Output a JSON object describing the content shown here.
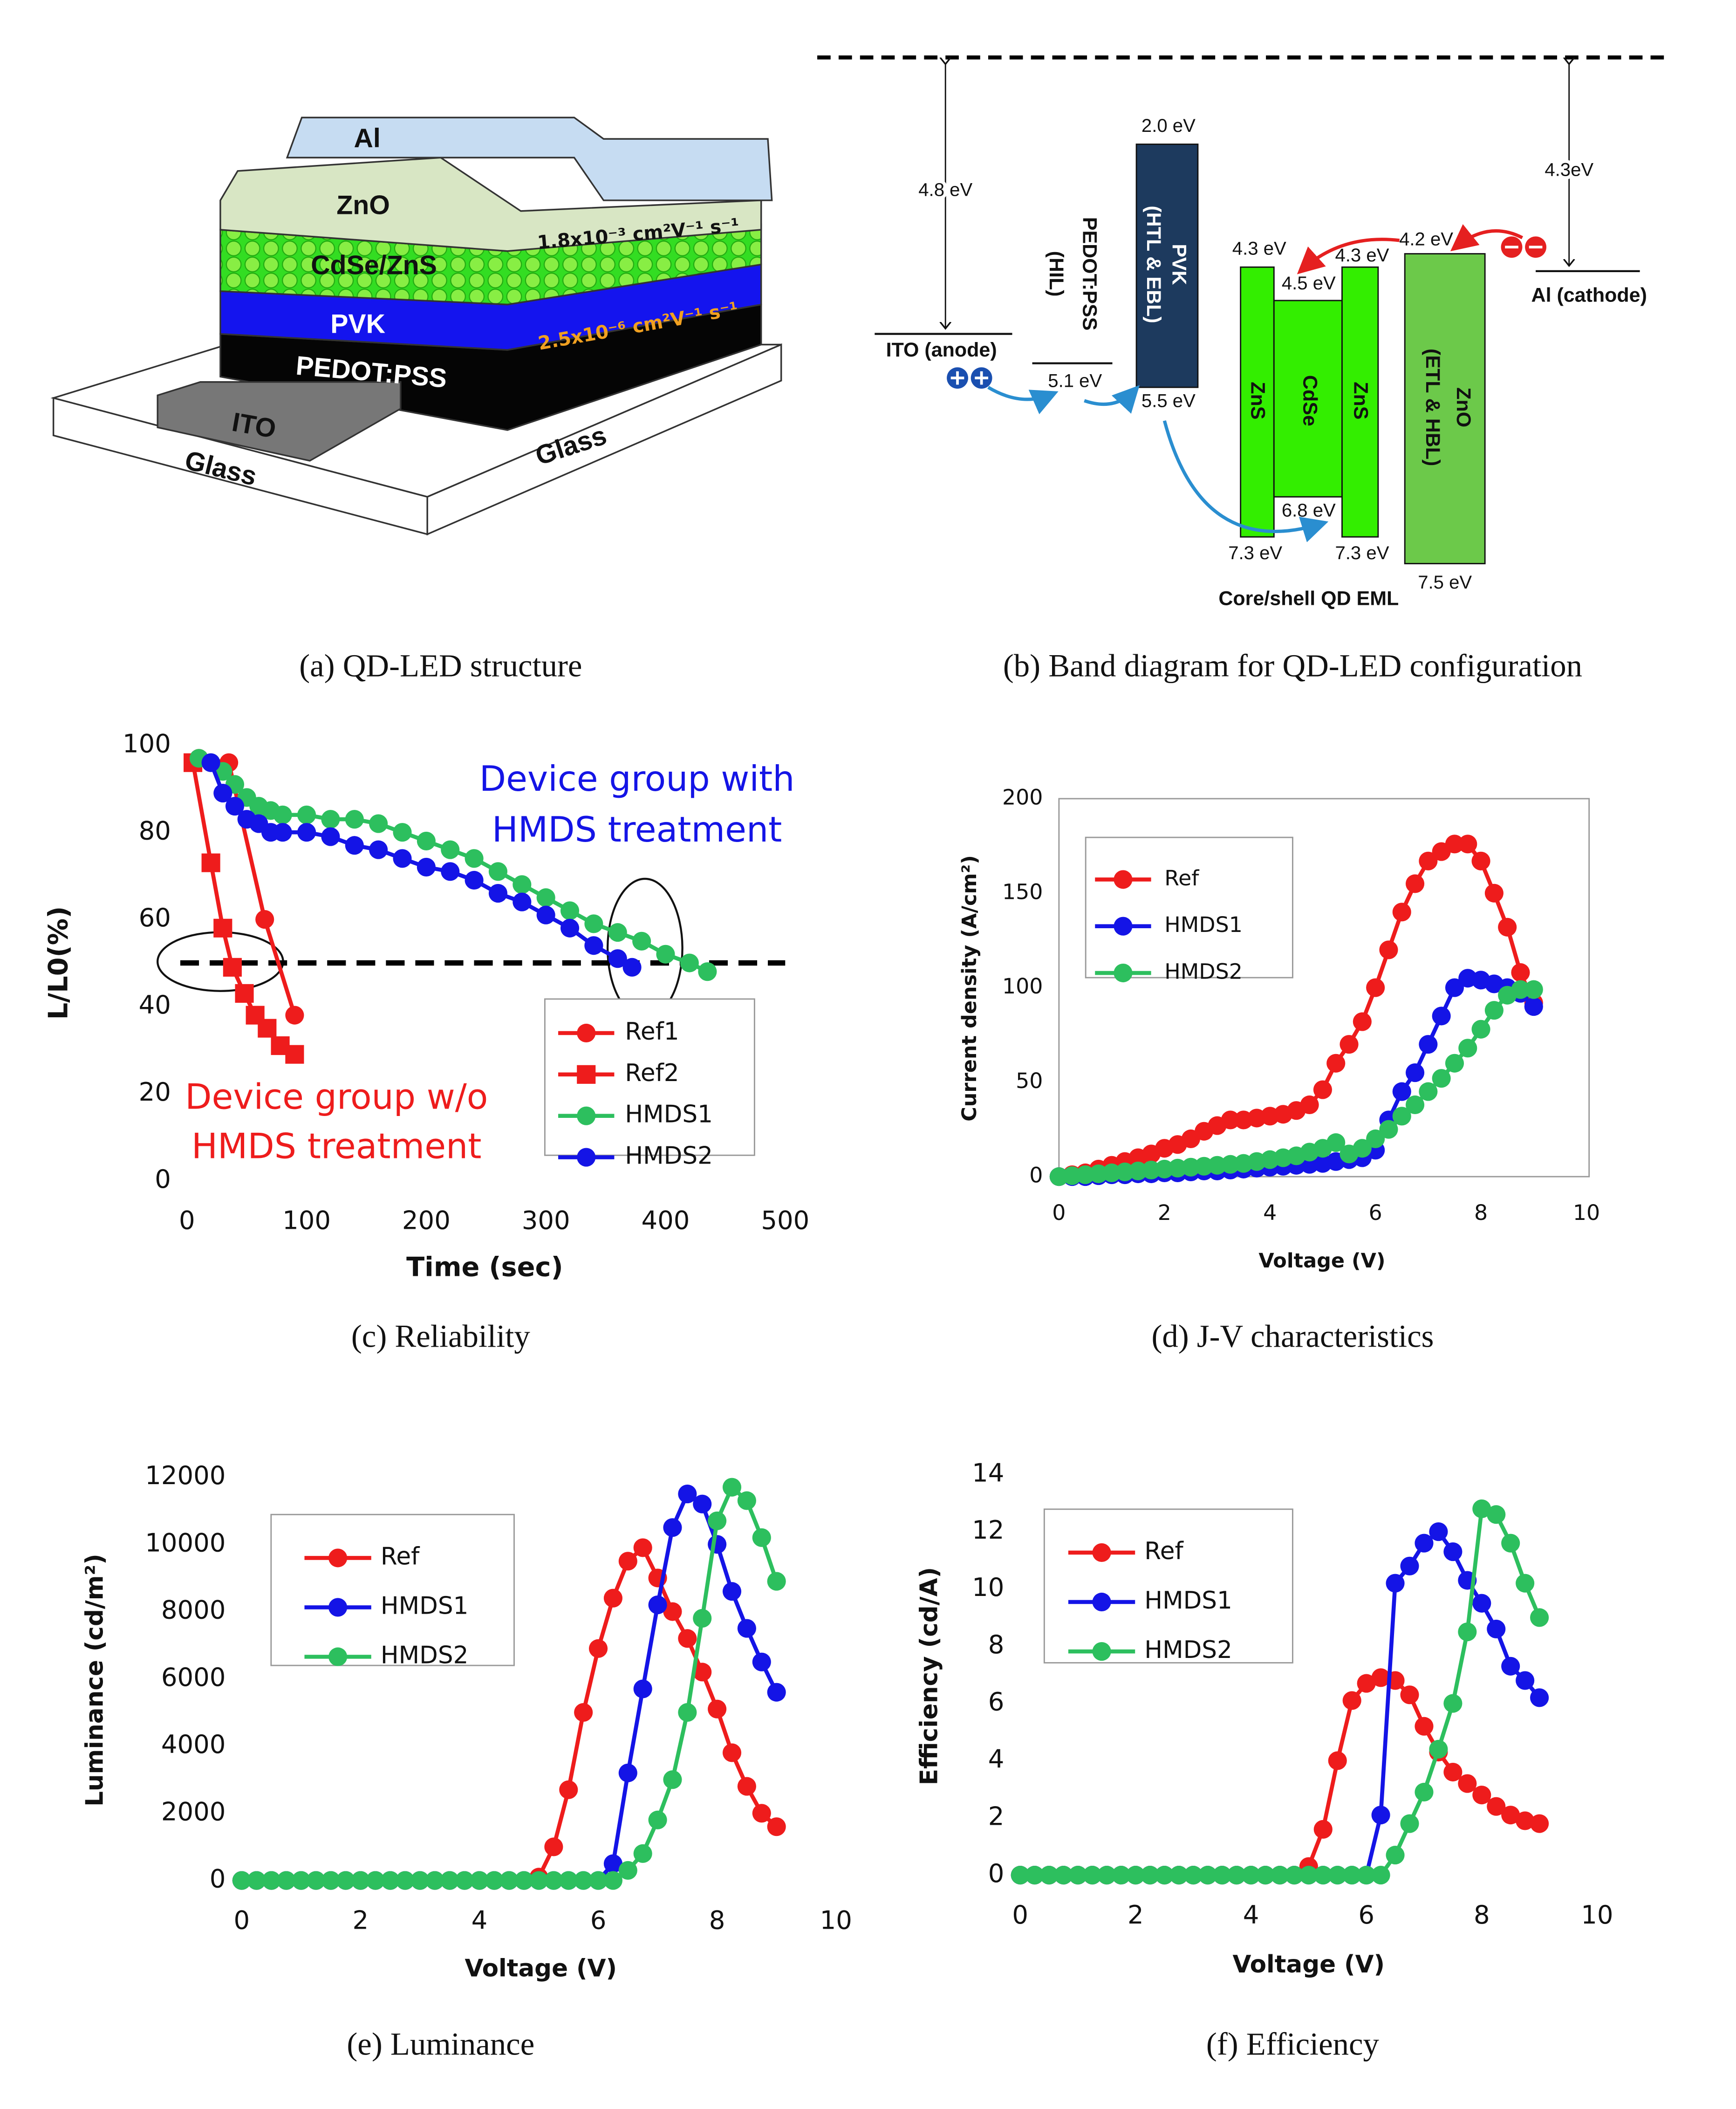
{
  "panel_a": {
    "layers": {
      "al": "Al",
      "zno": "ZnO",
      "qd": "CdSe/ZnS",
      "pvk": "PVK",
      "pedot": "PEDOT:PSS",
      "ito": "ITO",
      "glass_left": "Glass",
      "glass_right": "Glass"
    },
    "mobility_zno": "1.8x10⁻³ cm²V⁻¹ s⁻¹",
    "mobility_pvk": "2.5x10⁻⁶ cm²V⁻¹ s⁻¹",
    "caption": "(a) QD-LED structure"
  },
  "panel_b": {
    "vacuum_ito": "4.8 eV",
    "vacuum_al": "4.3eV",
    "ito": "ITO (anode)",
    "al": "Al (cathode)",
    "pedot_name": "PEDOT:PSS",
    "pedot_role": "(HIL)",
    "pedot_homo": "5.1 eV",
    "pvk_name": "PVK",
    "pvk_role": "(HTL & EBL)",
    "pvk_lumo": "2.0 eV",
    "pvk_homo": "5.5 eV",
    "zns_left": "ZnS",
    "cdse": "CdSe",
    "zns_right": "ZnS",
    "zns_left_lumo": "4.3 eV",
    "cdse_lumo": "4.5 eV",
    "zns_right_lumo": "4.3 eV",
    "zns_left_homo": "7.3 eV",
    "cdse_homo": "6.8 eV",
    "zns_right_homo": "7.3 eV",
    "zno_name": "ZnO",
    "zno_role": "(ETL & HBL)",
    "zno_lumo": "4.2 eV",
    "zno_homo": "7.5 eV",
    "eml": "Core/shell QD EML",
    "caption": "(b) Band diagram for QD-LED configuration"
  },
  "chart_data": [
    {
      "type": "line",
      "caption": "(c) Reliability",
      "x_label": "Time (sec)",
      "y_label": "L/L0(%)",
      "xlim": [
        0,
        500
      ],
      "xticks": [
        0,
        100,
        200,
        300,
        400,
        500
      ],
      "ylim": [
        0,
        100
      ],
      "yticks": [
        0,
        20,
        40,
        60,
        80,
        100
      ],
      "reference_line": 50,
      "legend": "lower right",
      "frame": false,
      "annotations": [
        {
          "lines": [
            "Device group with",
            "HMDS treatment"
          ],
          "color": "#1414e6"
        },
        {
          "lines": [
            "Device group w/o",
            "HMDS treatment"
          ],
          "color": "#ee1c1c"
        }
      ],
      "series": [
        {
          "name": "Ref1",
          "color": "#ee1c1c",
          "marker": "circle",
          "x": [
            10,
            35,
            65,
            90
          ],
          "values": [
            97,
            96,
            60,
            38
          ]
        },
        {
          "name": "Ref2",
          "color": "#ee1c1c",
          "marker": "square",
          "x": [
            5,
            20,
            30,
            38,
            48,
            57,
            67,
            78,
            90
          ],
          "values": [
            96,
            73,
            58,
            49,
            43,
            38,
            35,
            31,
            29
          ]
        },
        {
          "name": "HMDS1",
          "color": "#2dbf5e",
          "marker": "circle",
          "x": [
            10,
            20,
            30,
            40,
            50,
            60,
            70,
            80,
            100,
            120,
            140,
            160,
            180,
            200,
            220,
            240,
            260,
            280,
            300,
            320,
            340,
            360,
            380,
            400,
            420,
            435
          ],
          "values": [
            97,
            96,
            94,
            91,
            88,
            86,
            85,
            84,
            84,
            83,
            83,
            82,
            80,
            78,
            76,
            74,
            71,
            68,
            65,
            62,
            59,
            57,
            55,
            52,
            50,
            48
          ]
        },
        {
          "name": "HMDS2",
          "color": "#1414e6",
          "marker": "circle",
          "x": [
            20,
            30,
            40,
            50,
            60,
            70,
            80,
            100,
            120,
            140,
            160,
            180,
            200,
            220,
            240,
            260,
            280,
            300,
            320,
            340,
            360,
            372
          ],
          "values": [
            96,
            89,
            86,
            83,
            82,
            80,
            80,
            80,
            79,
            77,
            76,
            74,
            72,
            71,
            69,
            66,
            64,
            61,
            58,
            54,
            51,
            49
          ]
        }
      ]
    },
    {
      "type": "line",
      "caption": "(d) J-V characteristics",
      "x_label": "Voltage (V)",
      "y_label": "Current density (A/cm²)",
      "xlim": [
        0,
        10
      ],
      "xticks": [
        0,
        2,
        4,
        6,
        8,
        10
      ],
      "ylim": [
        0,
        200
      ],
      "yticks": [
        0,
        50,
        100,
        150,
        200
      ],
      "legend": "upper left",
      "frame": true,
      "x": [
        0,
        0.25,
        0.5,
        0.75,
        1,
        1.25,
        1.5,
        1.75,
        2,
        2.25,
        2.5,
        2.75,
        3,
        3.25,
        3.5,
        3.75,
        4,
        4.25,
        4.5,
        4.75,
        5,
        5.25,
        5.5,
        5.75,
        6,
        6.25,
        6.5,
        6.75,
        7,
        7.25,
        7.5,
        7.75,
        8,
        8.25,
        8.5,
        8.75,
        9
      ],
      "series": [
        {
          "name": "Ref",
          "color": "#ee1c1c",
          "marker": "circle",
          "values": [
            0,
            1,
            2,
            4,
            6,
            8,
            10,
            12,
            15,
            17,
            20,
            24,
            27,
            30,
            30,
            31,
            32,
            33,
            35,
            38,
            46,
            60,
            70,
            82,
            100,
            120,
            140,
            155,
            167,
            172,
            176,
            176,
            167,
            150,
            132,
            108,
            92
          ]
        },
        {
          "name": "HMDS1",
          "color": "#1414e6",
          "marker": "circle",
          "values": [
            0,
            0,
            0,
            0.5,
            1,
            1,
            1.5,
            1.5,
            2,
            2,
            2.5,
            3,
            3,
            3.5,
            4,
            4.5,
            5,
            5.5,
            6,
            6.5,
            7,
            8,
            9,
            10,
            14,
            30,
            45,
            55,
            70,
            85,
            100,
            105,
            104,
            102,
            100,
            97,
            90
          ]
        },
        {
          "name": "HMDS2",
          "color": "#2dbf5e",
          "marker": "circle",
          "values": [
            0,
            0.5,
            1,
            1.5,
            2,
            2.5,
            3,
            3.5,
            4,
            4.5,
            5,
            5.5,
            6,
            6.5,
            7,
            8,
            9,
            10,
            11,
            13,
            15,
            18,
            12,
            15,
            20,
            25,
            32,
            38,
            45,
            52,
            60,
            68,
            78,
            88,
            96,
            99,
            99
          ]
        }
      ]
    },
    {
      "type": "line",
      "caption": "(e) Luminance",
      "x_label": "Voltage (V)",
      "y_label": "Luminance (cd/m²)",
      "xlim": [
        0,
        10
      ],
      "xticks": [
        0,
        2,
        4,
        6,
        8,
        10
      ],
      "ylim": [
        0,
        12000
      ],
      "yticks": [
        0,
        2000,
        4000,
        6000,
        8000,
        10000,
        12000
      ],
      "legend": "upper left",
      "frame": false,
      "x": [
        0,
        0.25,
        0.5,
        0.75,
        1,
        1.25,
        1.5,
        1.75,
        2,
        2.25,
        2.5,
        2.75,
        3,
        3.25,
        3.5,
        3.75,
        4,
        4.25,
        4.5,
        4.75,
        5,
        5.25,
        5.5,
        5.75,
        6,
        6.25,
        6.5,
        6.75,
        7,
        7.25,
        7.5,
        7.75,
        8,
        8.25,
        8.5,
        8.75,
        9
      ],
      "series": [
        {
          "name": "Ref",
          "color": "#ee1c1c",
          "marker": "circle",
          "values": [
            0,
            0,
            0,
            0,
            0,
            0,
            0,
            0,
            0,
            0,
            0,
            0,
            0,
            0,
            0,
            0,
            0,
            0,
            0,
            0,
            100,
            1000,
            2700,
            5000,
            6900,
            8400,
            9500,
            9900,
            9000,
            8000,
            7200,
            6200,
            5100,
            3800,
            2800,
            2000,
            1600
          ]
        },
        {
          "name": "HMDS1",
          "color": "#1414e6",
          "marker": "circle",
          "values": [
            0,
            0,
            0,
            0,
            0,
            0,
            0,
            0,
            0,
            0,
            0,
            0,
            0,
            0,
            0,
            0,
            0,
            0,
            0,
            0,
            0,
            0,
            0,
            0,
            0,
            500,
            3200,
            5700,
            8200,
            10500,
            11500,
            11200,
            10000,
            8600,
            7500,
            6500,
            5600
          ]
        },
        {
          "name": "HMDS2",
          "color": "#2dbf5e",
          "marker": "circle",
          "values": [
            0,
            0,
            0,
            0,
            0,
            0,
            0,
            0,
            0,
            0,
            0,
            0,
            0,
            0,
            0,
            0,
            0,
            0,
            0,
            0,
            0,
            0,
            0,
            0,
            0,
            0,
            300,
            800,
            1800,
            3000,
            5000,
            7800,
            10700,
            11700,
            11300,
            10200,
            8900
          ]
        }
      ]
    },
    {
      "type": "line",
      "caption": "(f) Efficiency",
      "x_label": "Voltage (V)",
      "y_label": "Efficiency (cd/A)",
      "xlim": [
        0,
        10
      ],
      "xticks": [
        0,
        2,
        4,
        6,
        8,
        10
      ],
      "ylim": [
        0,
        14
      ],
      "yticks": [
        0,
        2,
        4,
        6,
        8,
        10,
        12,
        14
      ],
      "legend": "upper left",
      "frame": false,
      "x": [
        0,
        0.25,
        0.5,
        0.75,
        1,
        1.25,
        1.5,
        1.75,
        2,
        2.25,
        2.5,
        2.75,
        3,
        3.25,
        3.5,
        3.75,
        4,
        4.25,
        4.5,
        4.75,
        5,
        5.25,
        5.5,
        5.75,
        6,
        6.25,
        6.5,
        6.75,
        7,
        7.25,
        7.5,
        7.75,
        8,
        8.25,
        8.5,
        8.75,
        9
      ],
      "series": [
        {
          "name": "Ref",
          "color": "#ee1c1c",
          "marker": "circle",
          "values": [
            0,
            0,
            0,
            0,
            0,
            0,
            0,
            0,
            0,
            0,
            0,
            0,
            0,
            0,
            0,
            0,
            0,
            0,
            0,
            0,
            0.3,
            1.6,
            4,
            6.1,
            6.7,
            6.9,
            6.8,
            6.3,
            5.2,
            4.3,
            3.6,
            3.2,
            2.8,
            2.4,
            2.1,
            1.9,
            1.8
          ]
        },
        {
          "name": "HMDS1",
          "color": "#1414e6",
          "marker": "circle",
          "values": [
            0,
            0,
            0,
            0,
            0,
            0,
            0,
            0,
            0,
            0,
            0,
            0,
            0,
            0,
            0,
            0,
            0,
            0,
            0,
            0,
            0,
            0,
            0,
            0,
            0,
            2.1,
            10.2,
            10.8,
            11.6,
            12,
            11.3,
            10.3,
            9.5,
            8.6,
            7.3,
            6.8,
            6.2
          ]
        },
        {
          "name": "HMDS2",
          "color": "#2dbf5e",
          "marker": "circle",
          "values": [
            0,
            0,
            0,
            0,
            0,
            0,
            0,
            0,
            0,
            0,
            0,
            0,
            0,
            0,
            0,
            0,
            0,
            0,
            0,
            0,
            0,
            0,
            0,
            0,
            0,
            0,
            0.7,
            1.8,
            2.9,
            4.4,
            6,
            8.5,
            12.8,
            12.6,
            11.6,
            10.2,
            9
          ]
        }
      ]
    }
  ]
}
